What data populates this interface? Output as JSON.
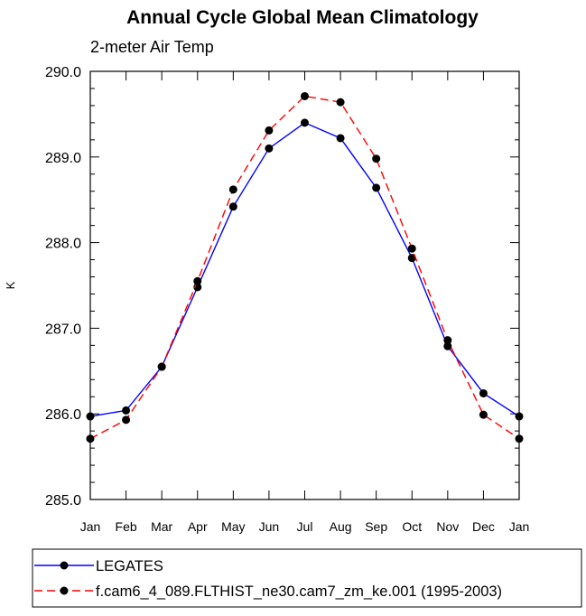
{
  "chart_data": {
    "type": "line",
    "title": "Annual Cycle Global Mean Climatology",
    "subtitle": "2-meter Air Temp",
    "xlabel": "",
    "ylabel": "K",
    "categories": [
      "Jan",
      "Feb",
      "Mar",
      "Apr",
      "May",
      "Jun",
      "Jul",
      "Aug",
      "Sep",
      "Oct",
      "Nov",
      "Dec",
      "Jan"
    ],
    "ylim": [
      285.0,
      290.0
    ],
    "yticks": [
      285.0,
      286.0,
      287.0,
      288.0,
      289.0,
      290.0
    ],
    "ytick_labels": [
      "285.0",
      "286.0",
      "287.0",
      "288.0",
      "289.0",
      "290.0"
    ],
    "grid": false,
    "legend_position": "bottom",
    "series": [
      {
        "name": "LEGATES",
        "color": "#0000ff",
        "dash": "solid",
        "marker_color": "#000000",
        "values": [
          285.97,
          286.04,
          286.55,
          287.48,
          288.42,
          289.1,
          289.4,
          289.22,
          288.64,
          287.82,
          286.79,
          286.24,
          285.97
        ]
      },
      {
        "name": "f.cam6_4_089.FLTHIST_ne30.cam7_zm_ke.001 (1995-2003)",
        "color": "#ff0000",
        "dash": "dashed",
        "marker_color": "#000000",
        "values": [
          285.71,
          285.93,
          286.55,
          287.55,
          288.62,
          289.31,
          289.71,
          289.64,
          288.98,
          287.93,
          286.86,
          285.99,
          285.71
        ]
      }
    ]
  }
}
